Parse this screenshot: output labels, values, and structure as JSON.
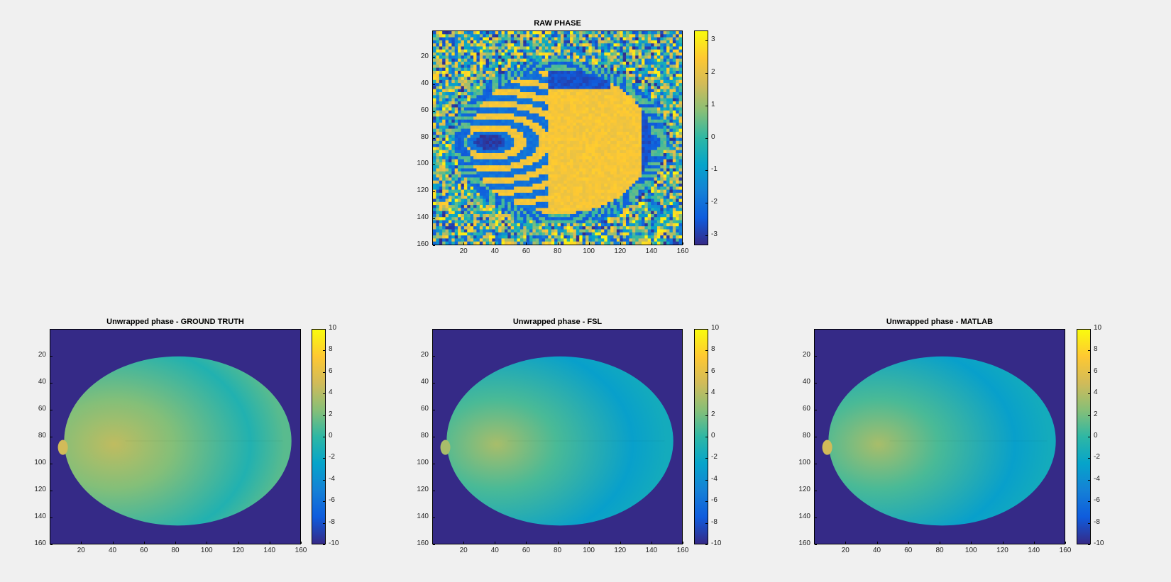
{
  "colors": {
    "background": "#f0f0f0",
    "parula": [
      "#352a87",
      "#0f5cdd",
      "#1481d6",
      "#06a4ca",
      "#2eb7a4",
      "#87bf77",
      "#d1bb59",
      "#fec832",
      "#f9fb0e"
    ]
  },
  "chart_data": [
    {
      "type": "heatmap",
      "id": "raw",
      "title": "RAW PHASE",
      "xticks": [
        20,
        40,
        60,
        80,
        100,
        120,
        140,
        160
      ],
      "yticks": [
        20,
        40,
        60,
        80,
        100,
        120,
        140,
        160
      ],
      "xlim": [
        0,
        160
      ],
      "ylim": [
        0,
        160
      ],
      "colorbar": {
        "min": -3.3,
        "max": 3.3,
        "ticks": [
          3,
          2,
          1,
          0,
          -1,
          -2,
          -3
        ]
      },
      "description_values": "wrapped phase in radians, range -pi..pi"
    },
    {
      "type": "heatmap",
      "id": "gt",
      "title": "Unwrapped phase - GROUND TRUTH",
      "xticks": [
        20,
        40,
        60,
        80,
        100,
        120,
        140,
        160
      ],
      "yticks": [
        20,
        40,
        60,
        80,
        100,
        120,
        140,
        160
      ],
      "xlim": [
        0,
        160
      ],
      "ylim": [
        0,
        160
      ],
      "colorbar": {
        "min": -10,
        "max": 10,
        "ticks": [
          10,
          8,
          6,
          4,
          2,
          0,
          -2,
          -4,
          -6,
          -8,
          -10
        ]
      }
    },
    {
      "type": "heatmap",
      "id": "fsl",
      "title": "Unwrapped phase - FSL",
      "xticks": [
        20,
        40,
        60,
        80,
        100,
        120,
        140,
        160
      ],
      "yticks": [
        20,
        40,
        60,
        80,
        100,
        120,
        140,
        160
      ],
      "xlim": [
        0,
        160
      ],
      "ylim": [
        0,
        160
      ],
      "colorbar": {
        "min": -10,
        "max": 10,
        "ticks": [
          10,
          8,
          6,
          4,
          2,
          0,
          -2,
          -4,
          -6,
          -8,
          -10
        ]
      }
    },
    {
      "type": "heatmap",
      "id": "matlab",
      "title": "Unwrapped phase - MATLAB",
      "xticks": [
        20,
        40,
        60,
        80,
        100,
        120,
        140,
        160
      ],
      "yticks": [
        20,
        40,
        60,
        80,
        100,
        120,
        140,
        160
      ],
      "xlim": [
        0,
        160
      ],
      "ylim": [
        0,
        160
      ],
      "colorbar": {
        "min": -10,
        "max": 10,
        "ticks": [
          10,
          8,
          6,
          4,
          2,
          0,
          -2,
          -4,
          -6,
          -8,
          -10
        ]
      }
    }
  ]
}
